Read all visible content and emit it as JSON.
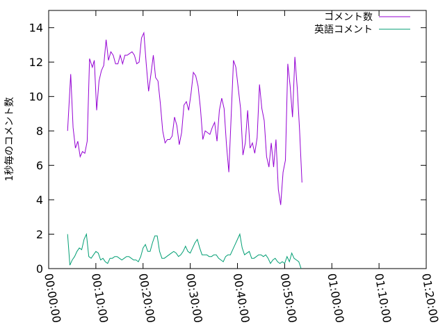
{
  "chart_data": {
    "type": "line",
    "title": "",
    "xlabel": "",
    "ylabel": "1秒毎のコメント数",
    "xlim": [
      0,
      4800
    ],
    "ylim": [
      0,
      15
    ],
    "x_ticks": [
      {
        "value": 0,
        "label": "00:00:00"
      },
      {
        "value": 600,
        "label": "00:10:00"
      },
      {
        "value": 1200,
        "label": "00:20:00"
      },
      {
        "value": 1800,
        "label": "00:30:00"
      },
      {
        "value": 2400,
        "label": "00:40:00"
      },
      {
        "value": 3000,
        "label": "00:50:00"
      },
      {
        "value": 3600,
        "label": "01:00:00"
      },
      {
        "value": 4200,
        "label": "01:10:00"
      },
      {
        "value": 4800,
        "label": "01:20:00"
      }
    ],
    "y_ticks": [
      {
        "value": 0,
        "label": "0"
      },
      {
        "value": 2,
        "label": "2"
      },
      {
        "value": 4,
        "label": "4"
      },
      {
        "value": 6,
        "label": "6"
      },
      {
        "value": 8,
        "label": "8"
      },
      {
        "value": 10,
        "label": "10"
      },
      {
        "value": 12,
        "label": "12"
      },
      {
        "value": 14,
        "label": "14"
      }
    ],
    "grid": false,
    "legend_position": "top-right",
    "series": [
      {
        "name": "コメント数",
        "color": "#9400d3",
        "points": [
          [
            240,
            8.0
          ],
          [
            280,
            11.3
          ],
          [
            310,
            8.2
          ],
          [
            340,
            7.0
          ],
          [
            370,
            7.4
          ],
          [
            400,
            6.5
          ],
          [
            430,
            6.8
          ],
          [
            460,
            6.7
          ],
          [
            490,
            7.4
          ],
          [
            520,
            12.2
          ],
          [
            555,
            11.7
          ],
          [
            580,
            12.1
          ],
          [
            610,
            9.2
          ],
          [
            640,
            10.9
          ],
          [
            670,
            11.5
          ],
          [
            700,
            11.8
          ],
          [
            730,
            13.3
          ],
          [
            760,
            12.1
          ],
          [
            790,
            12.6
          ],
          [
            820,
            12.4
          ],
          [
            850,
            11.9
          ],
          [
            880,
            11.9
          ],
          [
            910,
            12.4
          ],
          [
            940,
            11.9
          ],
          [
            970,
            12.4
          ],
          [
            1000,
            12.4
          ],
          [
            1030,
            12.5
          ],
          [
            1060,
            12.6
          ],
          [
            1090,
            12.4
          ],
          [
            1120,
            11.9
          ],
          [
            1150,
            12.0
          ],
          [
            1180,
            13.4
          ],
          [
            1210,
            13.7
          ],
          [
            1240,
            11.9
          ],
          [
            1270,
            10.3
          ],
          [
            1300,
            11.3
          ],
          [
            1330,
            12.4
          ],
          [
            1360,
            11.1
          ],
          [
            1390,
            10.9
          ],
          [
            1420,
            9.6
          ],
          [
            1450,
            8.0
          ],
          [
            1480,
            7.3
          ],
          [
            1510,
            7.5
          ],
          [
            1540,
            7.5
          ],
          [
            1570,
            7.7
          ],
          [
            1600,
            8.8
          ],
          [
            1630,
            8.3
          ],
          [
            1660,
            7.2
          ],
          [
            1690,
            7.9
          ],
          [
            1720,
            9.5
          ],
          [
            1750,
            9.7
          ],
          [
            1780,
            9.2
          ],
          [
            1810,
            10.2
          ],
          [
            1840,
            11.4
          ],
          [
            1870,
            11.2
          ],
          [
            1900,
            10.6
          ],
          [
            1930,
            9.3
          ],
          [
            1960,
            7.5
          ],
          [
            1990,
            8.0
          ],
          [
            2020,
            7.9
          ],
          [
            2050,
            7.8
          ],
          [
            2080,
            8.2
          ],
          [
            2110,
            8.5
          ],
          [
            2140,
            7.4
          ],
          [
            2170,
            9.2
          ],
          [
            2200,
            9.9
          ],
          [
            2230,
            9.3
          ],
          [
            2260,
            7.2
          ],
          [
            2290,
            5.6
          ],
          [
            2320,
            8.8
          ],
          [
            2350,
            12.1
          ],
          [
            2380,
            11.7
          ],
          [
            2410,
            10.5
          ],
          [
            2440,
            9.3
          ],
          [
            2470,
            6.6
          ],
          [
            2500,
            7.3
          ],
          [
            2530,
            9.2
          ],
          [
            2560,
            7.0
          ],
          [
            2590,
            7.3
          ],
          [
            2620,
            6.7
          ],
          [
            2650,
            7.6
          ],
          [
            2680,
            10.7
          ],
          [
            2710,
            9.3
          ],
          [
            2740,
            8.6
          ],
          [
            2770,
            6.5
          ],
          [
            2800,
            5.9
          ],
          [
            2830,
            7.3
          ],
          [
            2860,
            5.9
          ],
          [
            2890,
            7.5
          ],
          [
            2920,
            4.6
          ],
          [
            2950,
            3.7
          ],
          [
            2980,
            5.6
          ],
          [
            3010,
            6.3
          ],
          [
            3040,
            11.9
          ],
          [
            3070,
            10.6
          ],
          [
            3100,
            8.8
          ],
          [
            3130,
            12.3
          ],
          [
            3160,
            10.5
          ],
          [
            3190,
            8.0
          ],
          [
            3220,
            5.0
          ]
        ]
      },
      {
        "name": "英語コメント",
        "color": "#009e73",
        "points": [
          [
            240,
            2.0
          ],
          [
            270,
            0.2
          ],
          [
            300,
            0.5
          ],
          [
            330,
            0.7
          ],
          [
            360,
            1.0
          ],
          [
            390,
            1.2
          ],
          [
            420,
            1.1
          ],
          [
            450,
            1.7
          ],
          [
            480,
            2.0
          ],
          [
            510,
            0.7
          ],
          [
            540,
            0.6
          ],
          [
            570,
            0.8
          ],
          [
            600,
            1.0
          ],
          [
            630,
            0.9
          ],
          [
            660,
            0.5
          ],
          [
            690,
            0.6
          ],
          [
            720,
            0.4
          ],
          [
            750,
            0.3
          ],
          [
            780,
            0.6
          ],
          [
            810,
            0.6
          ],
          [
            840,
            0.7
          ],
          [
            870,
            0.7
          ],
          [
            900,
            0.6
          ],
          [
            930,
            0.5
          ],
          [
            960,
            0.6
          ],
          [
            990,
            0.7
          ],
          [
            1020,
            0.7
          ],
          [
            1050,
            0.6
          ],
          [
            1080,
            0.5
          ],
          [
            1110,
            0.5
          ],
          [
            1140,
            0.4
          ],
          [
            1170,
            0.7
          ],
          [
            1200,
            1.2
          ],
          [
            1230,
            1.4
          ],
          [
            1260,
            1.0
          ],
          [
            1290,
            1.0
          ],
          [
            1320,
            1.5
          ],
          [
            1350,
            1.9
          ],
          [
            1380,
            1.9
          ],
          [
            1410,
            1.0
          ],
          [
            1440,
            0.6
          ],
          [
            1470,
            0.6
          ],
          [
            1500,
            0.7
          ],
          [
            1530,
            0.8
          ],
          [
            1560,
            0.9
          ],
          [
            1590,
            1.0
          ],
          [
            1620,
            0.9
          ],
          [
            1650,
            0.7
          ],
          [
            1680,
            0.8
          ],
          [
            1710,
            1.0
          ],
          [
            1740,
            1.3
          ],
          [
            1770,
            1.0
          ],
          [
            1800,
            0.9
          ],
          [
            1830,
            1.2
          ],
          [
            1860,
            1.5
          ],
          [
            1890,
            1.7
          ],
          [
            1920,
            1.2
          ],
          [
            1950,
            0.8
          ],
          [
            1980,
            0.8
          ],
          [
            2010,
            0.8
          ],
          [
            2040,
            0.7
          ],
          [
            2070,
            0.7
          ],
          [
            2100,
            0.8
          ],
          [
            2130,
            0.8
          ],
          [
            2160,
            0.6
          ],
          [
            2190,
            0.5
          ],
          [
            2220,
            0.4
          ],
          [
            2250,
            0.7
          ],
          [
            2280,
            0.8
          ],
          [
            2310,
            0.8
          ],
          [
            2340,
            1.1
          ],
          [
            2370,
            1.4
          ],
          [
            2400,
            1.7
          ],
          [
            2430,
            2.0
          ],
          [
            2460,
            1.2
          ],
          [
            2490,
            0.8
          ],
          [
            2520,
            0.9
          ],
          [
            2550,
            1.0
          ],
          [
            2580,
            0.6
          ],
          [
            2610,
            0.6
          ],
          [
            2640,
            0.7
          ],
          [
            2670,
            0.8
          ],
          [
            2700,
            0.8
          ],
          [
            2730,
            0.7
          ],
          [
            2760,
            0.8
          ],
          [
            2790,
            0.6
          ],
          [
            2820,
            0.3
          ],
          [
            2850,
            0.5
          ],
          [
            2880,
            0.6
          ],
          [
            2910,
            0.4
          ],
          [
            2940,
            0.3
          ],
          [
            2970,
            0.4
          ],
          [
            3000,
            0.3
          ],
          [
            3030,
            0.7
          ],
          [
            3060,
            0.4
          ],
          [
            3090,
            0.9
          ],
          [
            3120,
            0.6
          ],
          [
            3150,
            0.5
          ],
          [
            3180,
            0.4
          ],
          [
            3210,
            0.0
          ]
        ]
      }
    ]
  }
}
